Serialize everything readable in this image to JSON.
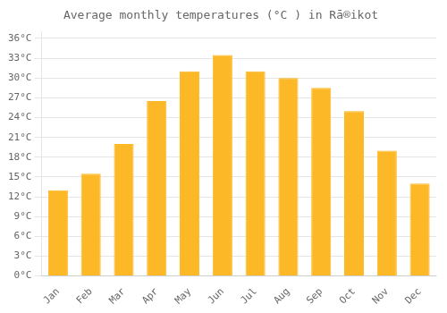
{
  "chart_data": {
    "type": "bar",
    "title": "Average monthly temperatures (°C ) in Rā®ikot",
    "categories": [
      "Jan",
      "Feb",
      "Mar",
      "Apr",
      "May",
      "Jun",
      "Jul",
      "Aug",
      "Sep",
      "Oct",
      "Nov",
      "Dec"
    ],
    "values": [
      13.0,
      15.5,
      20.0,
      26.5,
      31.0,
      33.5,
      31.0,
      30.0,
      28.5,
      25.0,
      19.0,
      14.0
    ],
    "color": "#FDB827",
    "ylim": [
      0,
      37
    ],
    "yticks": [
      {
        "value": 0,
        "label": "0°C"
      },
      {
        "value": 3,
        "label": "3°C"
      },
      {
        "value": 6,
        "label": "6°C"
      },
      {
        "value": 9,
        "label": "9°C"
      },
      {
        "value": 12,
        "label": "12°C"
      },
      {
        "value": 15,
        "label": "15°C"
      },
      {
        "value": 18,
        "label": "18°C"
      },
      {
        "value": 21,
        "label": "21°C"
      },
      {
        "value": 24,
        "label": "24°C"
      },
      {
        "value": 27,
        "label": "27°C"
      },
      {
        "value": 30,
        "label": "30°C"
      },
      {
        "value": 33,
        "label": "33°C"
      },
      {
        "value": 36,
        "label": "36°C"
      }
    ],
    "grid": true
  }
}
